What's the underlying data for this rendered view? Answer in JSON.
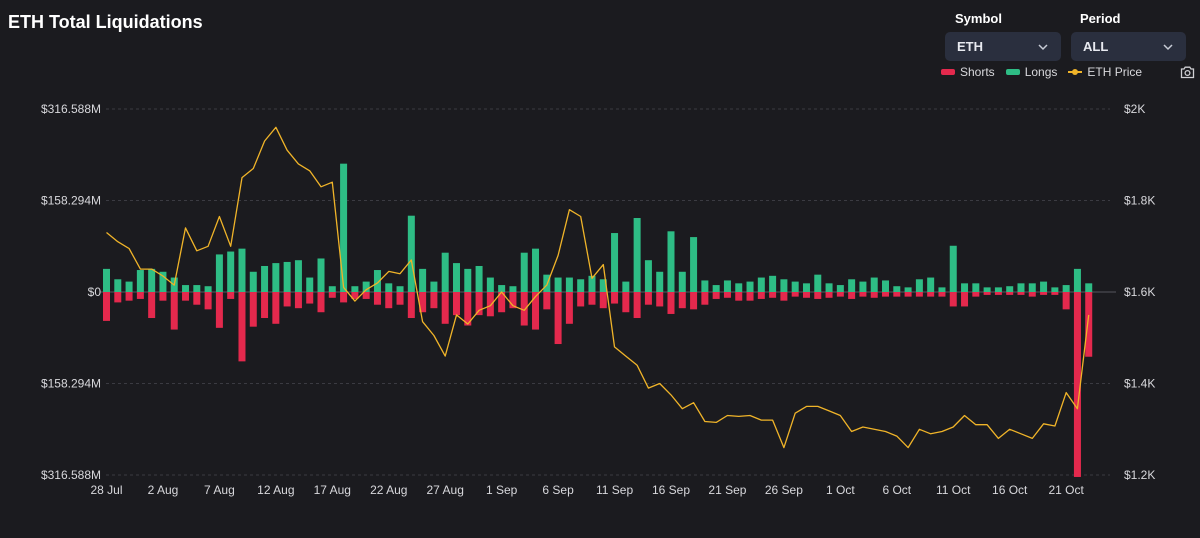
{
  "header": {
    "title": "ETH Total Liquidations"
  },
  "controls": {
    "symbol_label": "Symbol",
    "symbol_value": "ETH",
    "period_label": "Period",
    "period_value": "ALL"
  },
  "legend": {
    "shorts": "Shorts",
    "longs": "Longs",
    "price": "ETH Price"
  },
  "icons": {
    "chevron": "chevron-down-icon",
    "camera": "camera-icon"
  },
  "colors": {
    "longs": "#2ebd85",
    "shorts": "#e4294d",
    "price": "#f0b429",
    "background": "#1b1b1f"
  },
  "chart_data": {
    "type": "bar",
    "x_ticks": [
      "28 Jul",
      "2 Aug",
      "7 Aug",
      "12 Aug",
      "17 Aug",
      "22 Aug",
      "27 Aug",
      "1 Sep",
      "6 Sep",
      "11 Sep",
      "16 Sep",
      "21 Sep",
      "26 Sep",
      "1 Oct",
      "6 Oct",
      "11 Oct",
      "16 Oct",
      "21 Oct"
    ],
    "x_tick_start_day": 0,
    "x_tick_interval_days": 5,
    "left_axis": {
      "ticks": [
        "$316.588M",
        "$158.294M",
        "$0",
        "$158.294M",
        "$316.588M"
      ],
      "range_m": [
        -316.588,
        316.588
      ]
    },
    "right_axis": {
      "ticks": [
        "$2K",
        "$1.8K",
        "$1.6K",
        "$1.4K",
        "$1.2K"
      ],
      "range": [
        1200,
        2000
      ]
    },
    "grid": true,
    "legend_position": "top-right",
    "series": [
      {
        "name": "Longs",
        "values": [
          40,
          22,
          18,
          38,
          40,
          35,
          25,
          12,
          12,
          10,
          65,
          70,
          75,
          35,
          45,
          50,
          52,
          55,
          25,
          58,
          10,
          222,
          10,
          18,
          38,
          15,
          10,
          132,
          40,
          18,
          68,
          50,
          40,
          45,
          25,
          12,
          10,
          68,
          75,
          30,
          25,
          25,
          22,
          28,
          22,
          102,
          18,
          128,
          55,
          35,
          105,
          35,
          95,
          20,
          12,
          20,
          15,
          18,
          25,
          28,
          22,
          18,
          15,
          30,
          15,
          12,
          22,
          18,
          25,
          20,
          10,
          8,
          22,
          25,
          8,
          80,
          15,
          15,
          8,
          8,
          10,
          15,
          15,
          18,
          8,
          12,
          40,
          15
        ]
      },
      {
        "name": "Shorts",
        "values": [
          -50,
          -18,
          -15,
          -12,
          -45,
          -15,
          -65,
          -15,
          -22,
          -30,
          -62,
          -12,
          -120,
          -60,
          -45,
          -55,
          -25,
          -28,
          -20,
          -35,
          -10,
          -18,
          -12,
          -12,
          -22,
          -28,
          -22,
          -45,
          -35,
          -28,
          -55,
          -40,
          -58,
          -40,
          -42,
          -35,
          -28,
          -58,
          -65,
          -30,
          -90,
          -55,
          -25,
          -22,
          -28,
          -20,
          -35,
          -45,
          -22,
          -25,
          -38,
          -28,
          -30,
          -22,
          -12,
          -10,
          -15,
          -15,
          -12,
          -10,
          -15,
          -8,
          -10,
          -12,
          -10,
          -8,
          -12,
          -8,
          -10,
          -8,
          -8,
          -8,
          -8,
          -8,
          -8,
          -25,
          -25,
          -8,
          -5,
          -5,
          -5,
          -5,
          -8,
          -5,
          -5,
          -30,
          -320,
          -112
        ]
      },
      {
        "name": "ETH Price",
        "type": "line",
        "values": [
          1730,
          1710,
          1695,
          1650,
          1650,
          1635,
          1615,
          1740,
          1690,
          1700,
          1765,
          1700,
          1850,
          1870,
          1930,
          1960,
          1910,
          1880,
          1865,
          1830,
          1840,
          1610,
          1580,
          1605,
          1620,
          1645,
          1640,
          1670,
          1535,
          1505,
          1460,
          1550,
          1530,
          1560,
          1570,
          1600,
          1570,
          1560,
          1590,
          1615,
          1680,
          1780,
          1765,
          1630,
          1660,
          1480,
          1460,
          1440,
          1390,
          1400,
          1375,
          1345,
          1358,
          1317,
          1315,
          1330,
          1328,
          1330,
          1320,
          1320,
          1260,
          1335,
          1350,
          1350,
          1340,
          1330,
          1295,
          1305,
          1300,
          1295,
          1285,
          1260,
          1300,
          1290,
          1295,
          1305,
          1330,
          1310,
          1310,
          1280,
          1300,
          1290,
          1280,
          1312,
          1307,
          1380,
          1345,
          1550
        ]
      }
    ]
  }
}
